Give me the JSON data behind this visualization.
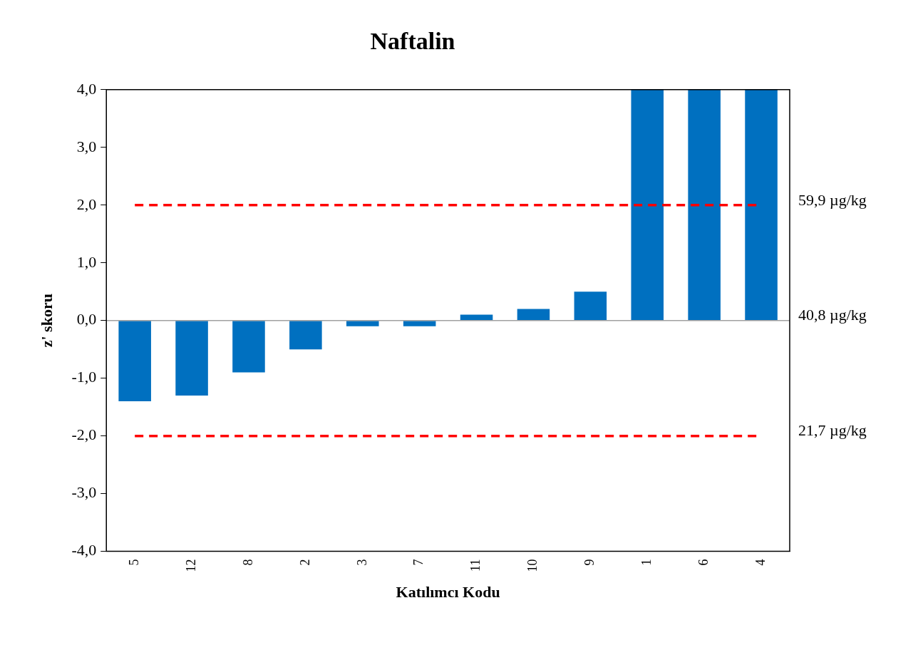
{
  "chart_data": {
    "type": "bar",
    "title": "Naftalin",
    "xlabel": "Katılımcı Kodu",
    "ylabel": "z' skoru",
    "categories": [
      "5",
      "12",
      "8",
      "2",
      "3",
      "7",
      "11",
      "10",
      "9",
      "1",
      "6",
      "4"
    ],
    "values": [
      -1.4,
      -1.3,
      -0.9,
      -0.5,
      -0.1,
      -0.1,
      0.1,
      0.2,
      0.5,
      4.0,
      4.0,
      4.0
    ],
    "color": "#0070c0",
    "ylim": [
      -4,
      4
    ],
    "yticks": [
      {
        "value": -4,
        "label": "-4,0"
      },
      {
        "value": -3,
        "label": "-3,0"
      },
      {
        "value": -2,
        "label": "-2,0"
      },
      {
        "value": -1,
        "label": "-1,0"
      },
      {
        "value": 0,
        "label": "0,0"
      },
      {
        "value": 1,
        "label": "1,0"
      },
      {
        "value": 2,
        "label": "2,0"
      },
      {
        "value": 3,
        "label": "3,0"
      },
      {
        "value": 4,
        "label": "4,0"
      }
    ],
    "ref_lines": [
      {
        "axis": "y",
        "value": 2,
        "label": "59,9 µg/kg",
        "color": "#ff0000",
        "line_style": "dashed"
      },
      {
        "axis": "y",
        "value": 0,
        "label": "40,8 µg/kg",
        "color": "#a0a0a0",
        "line_style": "solid"
      },
      {
        "axis": "y",
        "value": -2,
        "label": "21,7 µg/kg",
        "color": "#ff0000",
        "line_style": "dashed"
      }
    ],
    "grid": false,
    "legend": false
  }
}
